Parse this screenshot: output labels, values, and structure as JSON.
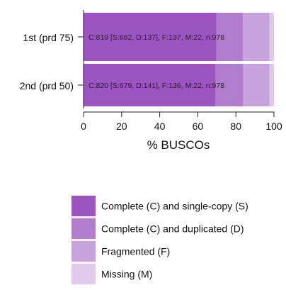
{
  "chart_data": {
    "type": "bar",
    "orientation": "horizontal",
    "stacked": true,
    "categories": [
      "1st (prd 75)",
      "2nd (prd 50)"
    ],
    "series": [
      {
        "name": "Complete (C) and single-copy (S)",
        "color": "#9c55c0",
        "values": [
          69.7,
          69.4
        ]
      },
      {
        "name": "Complete (C) and duplicated (D)",
        "color": "#b27ccf",
        "values": [
          14.0,
          14.4
        ]
      },
      {
        "name": "Fragmented (F)",
        "color": "#c8a2dc",
        "values": [
          14.0,
          13.9
        ]
      },
      {
        "name": "Missing (M)",
        "color": "#e0c9ec",
        "values": [
          2.3,
          2.3
        ]
      }
    ],
    "bar_labels": [
      "C:819 [S:682, D:137], F:137, M:22, n:978",
      "C:820 [S:679, D:141], F:136, M:22, n:978"
    ],
    "xlabel": "% BUSCOs",
    "xlim": [
      0,
      100
    ],
    "xticks": [
      0,
      20,
      40,
      60,
      80,
      100
    ],
    "legend_position": "bottom-right"
  }
}
